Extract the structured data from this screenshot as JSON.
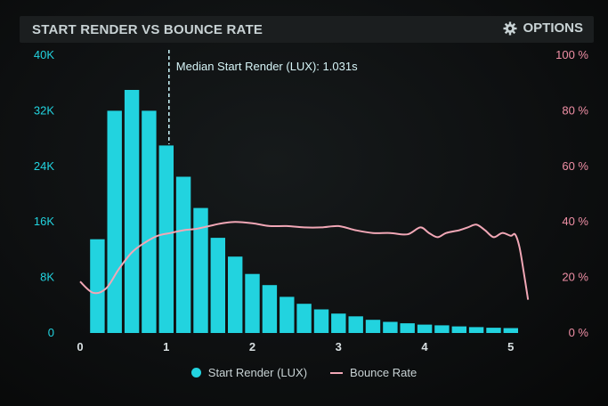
{
  "header": {
    "title": "START RENDER VS BOUNCE RATE",
    "options_label": "OPTIONS",
    "options_icon": "gear-icon"
  },
  "colors": {
    "bar": "#22d3df",
    "bounce_line": "#f1a7b6",
    "left_axis": "#22d3df",
    "right_axis": "#f08fa5",
    "median_line": "#bfe9ee"
  },
  "chart_data": {
    "type": "bar",
    "title": "START RENDER VS BOUNCE RATE",
    "xlabel": "",
    "ylabel": "",
    "x_ticks": [
      "0",
      "1",
      "2",
      "3",
      "4",
      "5"
    ],
    "xlim": [
      0,
      5.25
    ],
    "ylim": [
      0,
      40000
    ],
    "y_ticks": [
      "0",
      "8K",
      "16K",
      "24K",
      "32K",
      "40K"
    ],
    "y2lim": [
      0,
      100
    ],
    "y2_ticks": [
      "0 %",
      "20 %",
      "40 %",
      "60 %",
      "80 %",
      "100 %"
    ],
    "grid": false,
    "legend_position": "bottom",
    "annotation": {
      "text": "Median Start Render (LUX): 1.031s",
      "x": 1.031
    },
    "series": [
      {
        "name": "Start Render (LUX)",
        "type": "bar",
        "axis": "left",
        "x": [
          0.2,
          0.4,
          0.6,
          0.8,
          1.0,
          1.2,
          1.4,
          1.6,
          1.8,
          2.0,
          2.2,
          2.4,
          2.6,
          2.8,
          3.0,
          3.2,
          3.4,
          3.6,
          3.8,
          4.0,
          4.2,
          4.4,
          4.6,
          4.8,
          5.0
        ],
        "values": [
          13500,
          32000,
          35000,
          32000,
          27000,
          22500,
          18000,
          13700,
          11000,
          8500,
          6900,
          5200,
          4200,
          3400,
          2800,
          2400,
          1900,
          1600,
          1400,
          1200,
          1100,
          950,
          850,
          750,
          700
        ]
      },
      {
        "name": "Bounce Rate",
        "type": "line",
        "axis": "right",
        "x": [
          0.0,
          0.15,
          0.3,
          0.45,
          0.6,
          0.75,
          0.9,
          1.05,
          1.2,
          1.35,
          1.5,
          1.65,
          1.8,
          2.0,
          2.2,
          2.4,
          2.6,
          2.8,
          3.0,
          3.2,
          3.4,
          3.6,
          3.8,
          3.95,
          4.05,
          4.15,
          4.25,
          4.4,
          4.5,
          4.6,
          4.7,
          4.8,
          4.9,
          5.0,
          5.05,
          5.1,
          5.15,
          5.2
        ],
        "values": [
          18.5,
          14.5,
          16,
          23,
          29,
          32.5,
          35,
          36,
          37,
          37.5,
          38.5,
          39.5,
          40,
          39.5,
          38.5,
          38.5,
          38,
          38,
          38.5,
          37,
          36,
          36,
          35.5,
          38,
          36,
          34.5,
          36,
          37,
          38,
          39,
          37,
          34.5,
          36,
          35,
          35.5,
          31,
          22,
          12
        ]
      }
    ]
  },
  "legend": {
    "bars_label": "Start Render (LUX)",
    "line_label": "Bounce Rate"
  }
}
